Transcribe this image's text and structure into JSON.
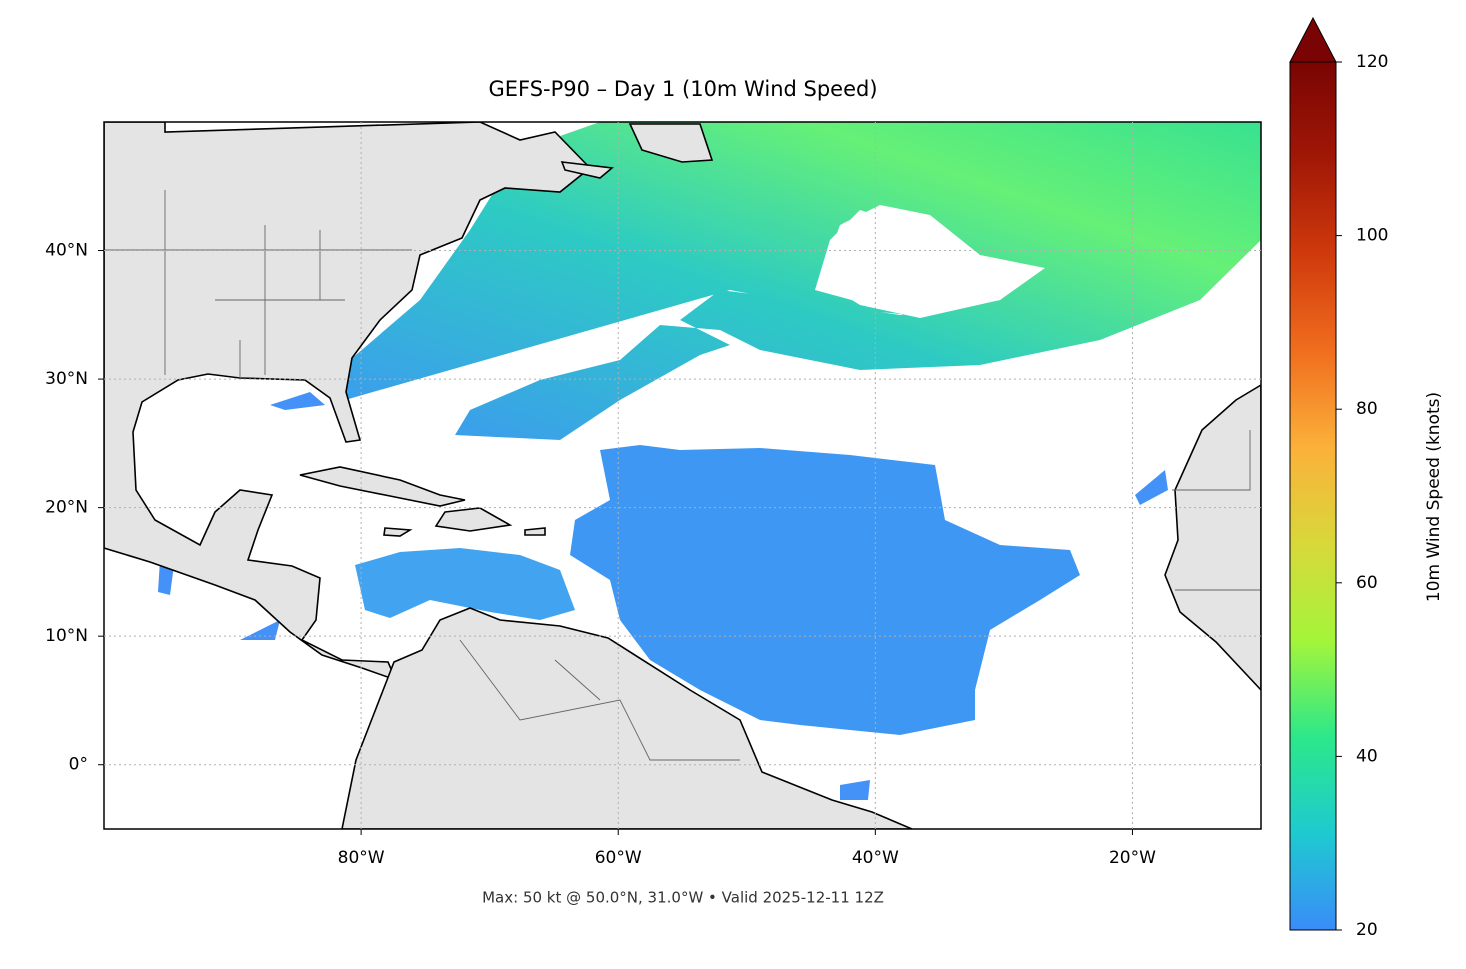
{
  "chart_data": {
    "type": "map",
    "title": "GEFS-P90 – Day 1 (10m Wind Speed)",
    "subtitle": "Max: 50 kt @ 50.0°N, 31.0°W • Valid 2025-12-11 12Z",
    "xlim": [
      -100,
      -10
    ],
    "ylim": [
      -5,
      50
    ],
    "xticks": [
      {
        "value": -80,
        "label": "80°W"
      },
      {
        "value": -60,
        "label": "60°W"
      },
      {
        "value": -40,
        "label": "40°W"
      },
      {
        "value": -20,
        "label": "20°W"
      }
    ],
    "yticks": [
      {
        "value": 0,
        "label": "0°"
      },
      {
        "value": 10,
        "label": "10°N"
      },
      {
        "value": 20,
        "label": "20°N"
      },
      {
        "value": 30,
        "label": "30°N"
      },
      {
        "value": 40,
        "label": "40°N"
      }
    ],
    "grid": true,
    "colorbar": {
      "label": "10m Wind Speed (knots)",
      "lim": [
        20,
        120
      ],
      "ticks": [
        20,
        40,
        60,
        80,
        100,
        120
      ],
      "colors": [
        "#3a8cf8",
        "#1ecad0",
        "#2ce88a",
        "#a4f53a",
        "#d8d83a",
        "#fbb13a",
        "#f06e1e",
        "#d03a0c",
        "#a01806",
        "#7a0403"
      ]
    }
  }
}
